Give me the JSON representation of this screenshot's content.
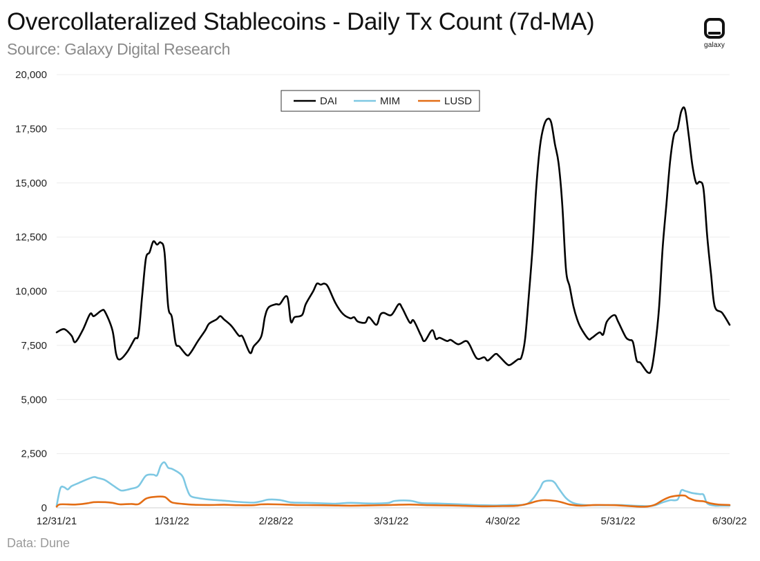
{
  "header": {
    "title": "Overcollateralized Stablecoins - Daily Tx Count (7d-MA)",
    "subtitle": "Source: Galaxy Digital Research",
    "logo_text": "galaxy"
  },
  "footer": {
    "source_note": "Data: Dune"
  },
  "chart_data": {
    "type": "line",
    "title": "Overcollateralized Stablecoins - Daily Tx Count (7d-MA)",
    "subtitle": "Source: Galaxy Digital Research",
    "xlabel": "",
    "ylabel": "",
    "ylim": [
      0,
      20000
    ],
    "yticks": [
      0,
      2500,
      5000,
      7500,
      10000,
      12500,
      15000,
      17500,
      20000
    ],
    "ytick_labels": [
      "0",
      "2,500",
      "5,000",
      "7,500",
      "10,000",
      "12,500",
      "15,000",
      "17,500",
      "20,000"
    ],
    "xlim": [
      "2021-12-31",
      "2022-06-30"
    ],
    "xticks": [
      "2021-12-31",
      "2022-01-31",
      "2022-02-28",
      "2022-03-31",
      "2022-04-30",
      "2022-05-31",
      "2022-06-30"
    ],
    "xtick_labels": [
      "12/31/21",
      "1/31/22",
      "2/28/22",
      "3/31/22",
      "4/30/22",
      "5/31/22",
      "6/30/22"
    ],
    "grid": "horizontal",
    "legend": "top-center",
    "series": [
      {
        "name": "DAI",
        "color": "#000000",
        "points": [
          [
            "2021-12-31",
            8100
          ],
          [
            "2022-01-02",
            8250
          ],
          [
            "2022-01-04",
            7950
          ],
          [
            "2022-01-05",
            7650
          ],
          [
            "2022-01-07",
            8200
          ],
          [
            "2022-01-09",
            8950
          ],
          [
            "2022-01-10",
            8850
          ],
          [
            "2022-01-12",
            9100
          ],
          [
            "2022-01-13",
            9050
          ],
          [
            "2022-01-15",
            8200
          ],
          [
            "2022-01-16",
            7100
          ],
          [
            "2022-01-17",
            6850
          ],
          [
            "2022-01-19",
            7200
          ],
          [
            "2022-01-21",
            7800
          ],
          [
            "2022-01-22",
            8000
          ],
          [
            "2022-01-23",
            9800
          ],
          [
            "2022-01-24",
            11500
          ],
          [
            "2022-01-25",
            11800
          ],
          [
            "2022-01-26",
            12300
          ],
          [
            "2022-01-27",
            12150
          ],
          [
            "2022-01-28",
            12250
          ],
          [
            "2022-01-29",
            11800
          ],
          [
            "2022-01-30",
            9300
          ],
          [
            "2022-01-31",
            8800
          ],
          [
            "2022-02-01",
            7600
          ],
          [
            "2022-02-02",
            7450
          ],
          [
            "2022-02-04",
            7050
          ],
          [
            "2022-02-05",
            7150
          ],
          [
            "2022-02-07",
            7700
          ],
          [
            "2022-02-09",
            8200
          ],
          [
            "2022-02-10",
            8500
          ],
          [
            "2022-02-12",
            8700
          ],
          [
            "2022-02-13",
            8850
          ],
          [
            "2022-02-14",
            8700
          ],
          [
            "2022-02-16",
            8400
          ],
          [
            "2022-02-18",
            7950
          ],
          [
            "2022-02-19",
            7900
          ],
          [
            "2022-02-21",
            7150
          ],
          [
            "2022-02-22",
            7450
          ],
          [
            "2022-02-24",
            7900
          ],
          [
            "2022-02-25",
            8800
          ],
          [
            "2022-02-26",
            9250
          ],
          [
            "2022-02-28",
            9400
          ],
          [
            "2022-03-01",
            9400
          ],
          [
            "2022-03-03",
            9750
          ],
          [
            "2022-03-04",
            8600
          ],
          [
            "2022-03-05",
            8800
          ],
          [
            "2022-03-07",
            8900
          ],
          [
            "2022-03-08",
            9400
          ],
          [
            "2022-03-10",
            10000
          ],
          [
            "2022-03-11",
            10350
          ],
          [
            "2022-03-12",
            10300
          ],
          [
            "2022-03-13",
            10350
          ],
          [
            "2022-03-14",
            10200
          ],
          [
            "2022-03-16",
            9450
          ],
          [
            "2022-03-18",
            8950
          ],
          [
            "2022-03-20",
            8750
          ],
          [
            "2022-03-21",
            8800
          ],
          [
            "2022-03-22",
            8600
          ],
          [
            "2022-03-24",
            8550
          ],
          [
            "2022-03-25",
            8800
          ],
          [
            "2022-03-27",
            8450
          ],
          [
            "2022-03-28",
            8900
          ],
          [
            "2022-03-29",
            9000
          ],
          [
            "2022-03-31",
            8900
          ],
          [
            "2022-04-02",
            9400
          ],
          [
            "2022-04-03",
            9200
          ],
          [
            "2022-04-05",
            8550
          ],
          [
            "2022-04-06",
            8650
          ],
          [
            "2022-04-08",
            7950
          ],
          [
            "2022-04-09",
            7700
          ],
          [
            "2022-04-11",
            8200
          ],
          [
            "2022-04-12",
            7800
          ],
          [
            "2022-04-13",
            7850
          ],
          [
            "2022-04-15",
            7700
          ],
          [
            "2022-04-16",
            7750
          ],
          [
            "2022-04-18",
            7550
          ],
          [
            "2022-04-20",
            7700
          ],
          [
            "2022-04-21",
            7550
          ],
          [
            "2022-04-23",
            6900
          ],
          [
            "2022-04-25",
            6950
          ],
          [
            "2022-04-26",
            6800
          ],
          [
            "2022-04-28",
            7100
          ],
          [
            "2022-04-29",
            7000
          ],
          [
            "2022-05-01",
            6650
          ],
          [
            "2022-05-02",
            6600
          ],
          [
            "2022-05-04",
            6850
          ],
          [
            "2022-05-05",
            6950
          ],
          [
            "2022-05-06",
            7800
          ],
          [
            "2022-05-07",
            9800
          ],
          [
            "2022-05-08",
            12000
          ],
          [
            "2022-05-09",
            14800
          ],
          [
            "2022-05-10",
            16700
          ],
          [
            "2022-05-11",
            17600
          ],
          [
            "2022-05-12",
            17950
          ],
          [
            "2022-05-13",
            17800
          ],
          [
            "2022-05-14",
            16800
          ],
          [
            "2022-05-15",
            15900
          ],
          [
            "2022-05-16",
            14000
          ],
          [
            "2022-05-17",
            11000
          ],
          [
            "2022-05-18",
            10200
          ],
          [
            "2022-05-19",
            9300
          ],
          [
            "2022-05-20",
            8700
          ],
          [
            "2022-05-21",
            8300
          ],
          [
            "2022-05-23",
            7800
          ],
          [
            "2022-05-24",
            7850
          ],
          [
            "2022-05-26",
            8100
          ],
          [
            "2022-05-27",
            8000
          ],
          [
            "2022-05-28",
            8600
          ],
          [
            "2022-05-30",
            8900
          ],
          [
            "2022-05-31",
            8600
          ],
          [
            "2022-06-02",
            7900
          ],
          [
            "2022-06-03",
            7750
          ],
          [
            "2022-06-04",
            7650
          ],
          [
            "2022-06-05",
            6800
          ],
          [
            "2022-06-06",
            6700
          ],
          [
            "2022-06-08",
            6250
          ],
          [
            "2022-06-09",
            6400
          ],
          [
            "2022-06-10",
            7500
          ],
          [
            "2022-06-11",
            9200
          ],
          [
            "2022-06-12",
            12000
          ],
          [
            "2022-06-13",
            14000
          ],
          [
            "2022-06-14",
            16000
          ],
          [
            "2022-06-15",
            17200
          ],
          [
            "2022-06-16",
            17500
          ],
          [
            "2022-06-17",
            18300
          ],
          [
            "2022-06-18",
            18400
          ],
          [
            "2022-06-19",
            17200
          ],
          [
            "2022-06-20",
            15800
          ],
          [
            "2022-06-21",
            15000
          ],
          [
            "2022-06-22",
            15050
          ],
          [
            "2022-06-23",
            14700
          ],
          [
            "2022-06-24",
            12500
          ],
          [
            "2022-06-25",
            10800
          ],
          [
            "2022-06-26",
            9300
          ],
          [
            "2022-06-28",
            9000
          ],
          [
            "2022-06-30",
            8450
          ]
        ]
      },
      {
        "name": "MIM",
        "color": "#7ec8e3",
        "points": [
          [
            "2021-12-31",
            100
          ],
          [
            "2022-01-01",
            900
          ],
          [
            "2022-01-02",
            950
          ],
          [
            "2022-01-03",
            850
          ],
          [
            "2022-01-04",
            1000
          ],
          [
            "2022-01-06",
            1150
          ],
          [
            "2022-01-08",
            1300
          ],
          [
            "2022-01-10",
            1420
          ],
          [
            "2022-01-11",
            1380
          ],
          [
            "2022-01-13",
            1280
          ],
          [
            "2022-01-15",
            1050
          ],
          [
            "2022-01-17",
            820
          ],
          [
            "2022-01-18",
            800
          ],
          [
            "2022-01-20",
            880
          ],
          [
            "2022-01-22",
            1000
          ],
          [
            "2022-01-24",
            1480
          ],
          [
            "2022-01-26",
            1530
          ],
          [
            "2022-01-27",
            1500
          ],
          [
            "2022-01-28",
            1950
          ],
          [
            "2022-01-29",
            2100
          ],
          [
            "2022-01-30",
            1850
          ],
          [
            "2022-01-31",
            1800
          ],
          [
            "2022-02-02",
            1600
          ],
          [
            "2022-02-03",
            1400
          ],
          [
            "2022-02-04",
            900
          ],
          [
            "2022-02-05",
            550
          ],
          [
            "2022-02-07",
            450
          ],
          [
            "2022-02-10",
            380
          ],
          [
            "2022-02-14",
            330
          ],
          [
            "2022-02-18",
            270
          ],
          [
            "2022-02-22",
            240
          ],
          [
            "2022-02-24",
            300
          ],
          [
            "2022-02-26",
            380
          ],
          [
            "2022-03-01",
            360
          ],
          [
            "2022-03-04",
            250
          ],
          [
            "2022-03-08",
            230
          ],
          [
            "2022-03-12",
            210
          ],
          [
            "2022-03-16",
            190
          ],
          [
            "2022-03-20",
            230
          ],
          [
            "2022-03-25",
            200
          ],
          [
            "2022-03-30",
            220
          ],
          [
            "2022-04-01",
            320
          ],
          [
            "2022-04-05",
            330
          ],
          [
            "2022-04-08",
            220
          ],
          [
            "2022-04-12",
            200
          ],
          [
            "2022-04-16",
            180
          ],
          [
            "2022-04-20",
            150
          ],
          [
            "2022-04-24",
            120
          ],
          [
            "2022-04-28",
            110
          ],
          [
            "2022-05-02",
            130
          ],
          [
            "2022-05-06",
            150
          ],
          [
            "2022-05-08",
            400
          ],
          [
            "2022-05-10",
            900
          ],
          [
            "2022-05-11",
            1200
          ],
          [
            "2022-05-13",
            1250
          ],
          [
            "2022-05-14",
            1150
          ],
          [
            "2022-05-15",
            900
          ],
          [
            "2022-05-17",
            450
          ],
          [
            "2022-05-19",
            220
          ],
          [
            "2022-05-22",
            130
          ],
          [
            "2022-05-26",
            120
          ],
          [
            "2022-05-31",
            130
          ],
          [
            "2022-06-04",
            100
          ],
          [
            "2022-06-08",
            80
          ],
          [
            "2022-06-10",
            120
          ],
          [
            "2022-06-12",
            250
          ],
          [
            "2022-06-14",
            350
          ],
          [
            "2022-06-16",
            380
          ],
          [
            "2022-06-17",
            800
          ],
          [
            "2022-06-18",
            780
          ],
          [
            "2022-06-20",
            680
          ],
          [
            "2022-06-22",
            630
          ],
          [
            "2022-06-23",
            600
          ],
          [
            "2022-06-24",
            200
          ],
          [
            "2022-06-26",
            100
          ],
          [
            "2022-06-28",
            100
          ],
          [
            "2022-06-30",
            100
          ]
        ]
      },
      {
        "name": "LUSD",
        "color": "#e36d15",
        "points": [
          [
            "2021-12-31",
            50
          ],
          [
            "2022-01-01",
            160
          ],
          [
            "2022-01-05",
            150
          ],
          [
            "2022-01-08",
            200
          ],
          [
            "2022-01-10",
            260
          ],
          [
            "2022-01-13",
            260
          ],
          [
            "2022-01-15",
            230
          ],
          [
            "2022-01-17",
            160
          ],
          [
            "2022-01-20",
            180
          ],
          [
            "2022-01-22",
            170
          ],
          [
            "2022-01-24",
            420
          ],
          [
            "2022-01-26",
            500
          ],
          [
            "2022-01-29",
            500
          ],
          [
            "2022-01-31",
            250
          ],
          [
            "2022-02-03",
            180
          ],
          [
            "2022-02-06",
            140
          ],
          [
            "2022-02-10",
            130
          ],
          [
            "2022-02-14",
            140
          ],
          [
            "2022-02-18",
            120
          ],
          [
            "2022-02-22",
            120
          ],
          [
            "2022-02-24",
            160
          ],
          [
            "2022-02-28",
            160
          ],
          [
            "2022-03-05",
            130
          ],
          [
            "2022-03-10",
            120
          ],
          [
            "2022-03-15",
            110
          ],
          [
            "2022-03-20",
            100
          ],
          [
            "2022-03-25",
            110
          ],
          [
            "2022-03-31",
            130
          ],
          [
            "2022-04-05",
            150
          ],
          [
            "2022-04-10",
            120
          ],
          [
            "2022-04-15",
            110
          ],
          [
            "2022-04-20",
            90
          ],
          [
            "2022-04-25",
            70
          ],
          [
            "2022-04-30",
            80
          ],
          [
            "2022-05-04",
            100
          ],
          [
            "2022-05-07",
            200
          ],
          [
            "2022-05-09",
            300
          ],
          [
            "2022-05-11",
            350
          ],
          [
            "2022-05-14",
            320
          ],
          [
            "2022-05-16",
            250
          ],
          [
            "2022-05-18",
            150
          ],
          [
            "2022-05-21",
            100
          ],
          [
            "2022-05-25",
            130
          ],
          [
            "2022-05-30",
            120
          ],
          [
            "2022-06-03",
            80
          ],
          [
            "2022-06-06",
            50
          ],
          [
            "2022-06-08",
            60
          ],
          [
            "2022-06-10",
            150
          ],
          [
            "2022-06-12",
            350
          ],
          [
            "2022-06-14",
            500
          ],
          [
            "2022-06-16",
            560
          ],
          [
            "2022-06-18",
            560
          ],
          [
            "2022-06-19",
            450
          ],
          [
            "2022-06-21",
            330
          ],
          [
            "2022-06-23",
            300
          ],
          [
            "2022-06-25",
            200
          ],
          [
            "2022-06-27",
            150
          ],
          [
            "2022-06-30",
            130
          ]
        ]
      }
    ]
  }
}
